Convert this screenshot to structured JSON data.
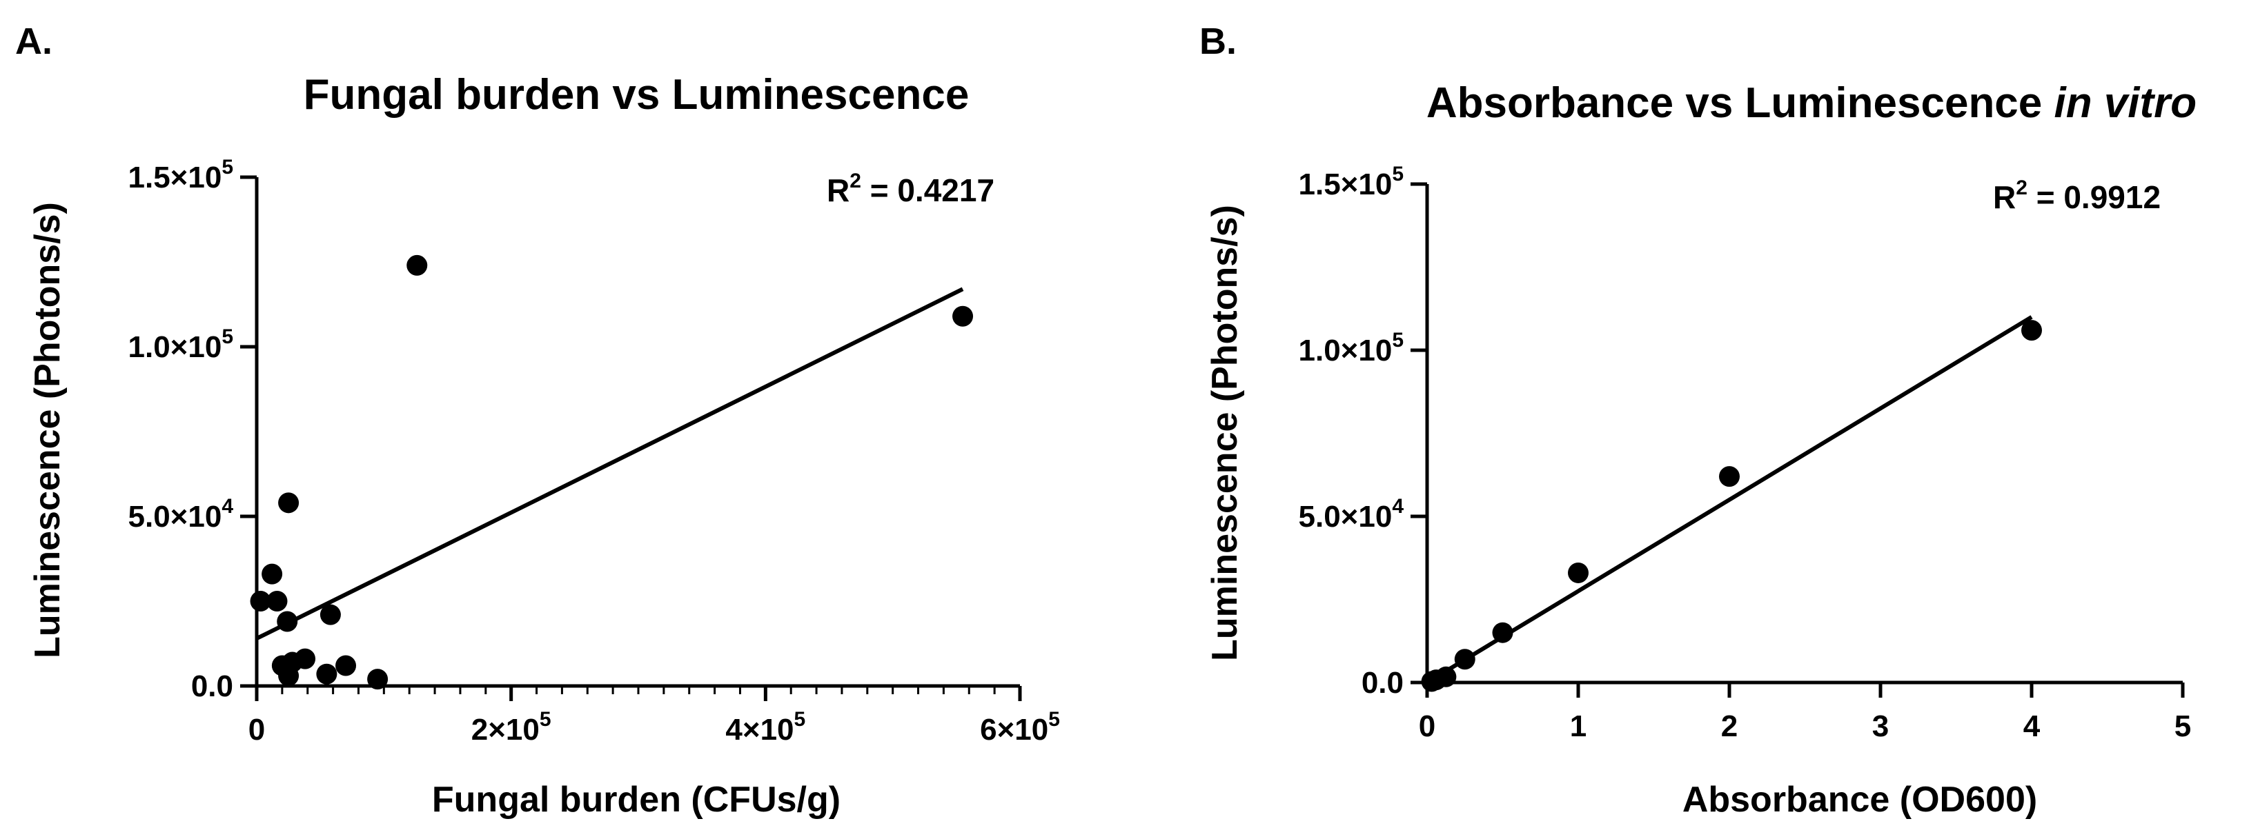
{
  "panels": {
    "a": {
      "label": "A."
    },
    "b": {
      "label": "B."
    }
  },
  "chart_data": [
    {
      "type": "scatter",
      "title": "Fungal burden vs Luminescence",
      "xlabel": "Fungal burden (CFUs/g)",
      "ylabel": "Luminescence (Photons/s)",
      "xlim": [
        0,
        600000
      ],
      "ylim": [
        0,
        150000
      ],
      "x_ticks": [
        0,
        200000,
        400000,
        600000
      ],
      "x_tick_labels": [
        "0",
        "2×10",
        "4×10",
        "6×10"
      ],
      "x_tick_exps": [
        "",
        "5",
        "5",
        "5"
      ],
      "y_ticks": [
        0,
        50000,
        100000,
        150000
      ],
      "y_tick_labels": [
        "0.0",
        "5.0×10",
        "1.0×10",
        "1.5×10"
      ],
      "y_tick_exps": [
        "",
        "4",
        "5",
        "5"
      ],
      "annotation": {
        "prefix": "R",
        "sup": "2",
        "suffix": " = 0.4217"
      },
      "points": [
        {
          "x": 3000,
          "y": 25000
        },
        {
          "x": 12000,
          "y": 33000
        },
        {
          "x": 16000,
          "y": 25000
        },
        {
          "x": 20000,
          "y": 6000
        },
        {
          "x": 24000,
          "y": 19000
        },
        {
          "x": 25000,
          "y": 54000
        },
        {
          "x": 25000,
          "y": 3000
        },
        {
          "x": 28000,
          "y": 7000
        },
        {
          "x": 38000,
          "y": 8000
        },
        {
          "x": 55000,
          "y": 3500
        },
        {
          "x": 58000,
          "y": 21000
        },
        {
          "x": 70000,
          "y": 6000
        },
        {
          "x": 95000,
          "y": 2000
        },
        {
          "x": 126000,
          "y": 124000
        },
        {
          "x": 555000,
          "y": 109000
        }
      ],
      "fit": {
        "x": [
          0,
          555000
        ],
        "y": [
          14000,
          117000
        ]
      },
      "grid": false,
      "legend": "none"
    },
    {
      "type": "scatter",
      "title": "Absorbance vs Luminescence ",
      "title_italic": "in vitro",
      "xlabel": "Absorbance (OD600)",
      "ylabel": "Luminescence (Photons/s)",
      "xlim": [
        0,
        5
      ],
      "ylim": [
        0,
        150000
      ],
      "x_ticks": [
        0,
        1,
        2,
        3,
        4,
        5
      ],
      "x_tick_labels": [
        "0",
        "1",
        "2",
        "3",
        "4",
        "5"
      ],
      "x_tick_exps": [
        "",
        "",
        "",
        "",
        "",
        ""
      ],
      "y_ticks": [
        0,
        50000,
        100000,
        150000
      ],
      "y_tick_labels": [
        "0.0",
        "5.0×10",
        "1.0×10",
        "1.5×10"
      ],
      "y_tick_exps": [
        "",
        "4",
        "5",
        "5"
      ],
      "annotation": {
        "prefix": "R",
        "sup": "2",
        "suffix": " = 0.9912"
      },
      "points": [
        {
          "x": 0.03,
          "y": 300
        },
        {
          "x": 0.06,
          "y": 800
        },
        {
          "x": 0.125,
          "y": 1700
        },
        {
          "x": 0.25,
          "y": 7000
        },
        {
          "x": 0.5,
          "y": 15000
        },
        {
          "x": 1,
          "y": 33000
        },
        {
          "x": 2,
          "y": 62000
        },
        {
          "x": 4,
          "y": 106000
        }
      ],
      "fit": {
        "x": [
          0,
          4
        ],
        "y": [
          0,
          110000
        ]
      },
      "grid": false,
      "legend": "none"
    }
  ]
}
